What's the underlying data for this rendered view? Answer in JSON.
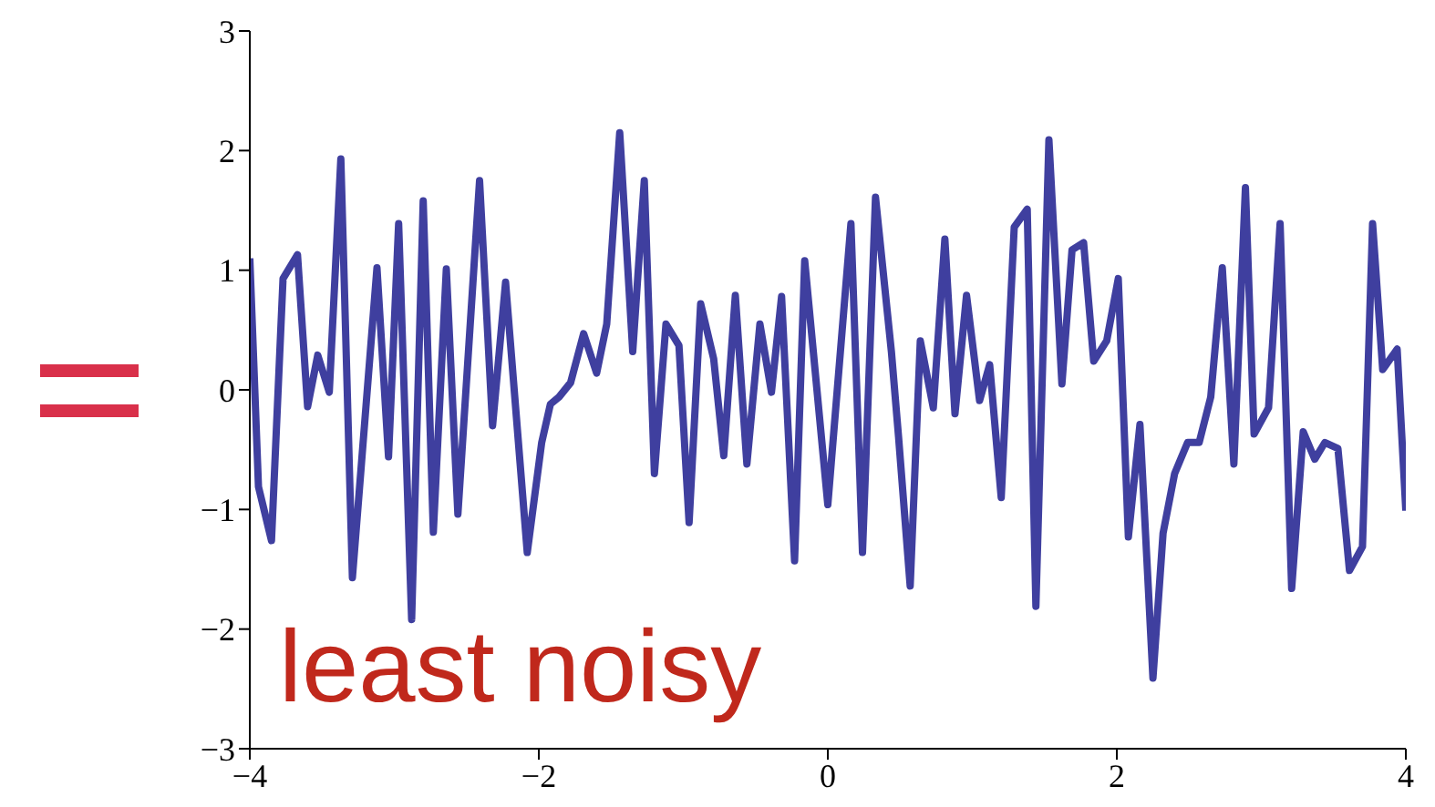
{
  "chart_data": {
    "type": "line",
    "annotations": [
      "least noisy"
    ],
    "x": [
      -4.0,
      -3.94,
      -3.85,
      -3.77,
      -3.67,
      -3.6,
      -3.53,
      -3.45,
      -3.37,
      -3.29,
      -3.12,
      -3.04,
      -2.97,
      -2.88,
      -2.8,
      -2.73,
      -2.64,
      -2.56,
      -2.41,
      -2.32,
      -2.23,
      -2.08,
      -1.98,
      -1.92,
      -1.86,
      -1.78,
      -1.69,
      -1.6,
      -1.53,
      -1.44,
      -1.35,
      -1.27,
      -1.2,
      -1.12,
      -1.03,
      -0.96,
      -0.88,
      -0.79,
      -0.72,
      -0.64,
      -0.56,
      -0.47,
      -0.39,
      -0.32,
      -0.23,
      -0.16,
      0.0,
      0.16,
      0.24,
      0.33,
      0.44,
      0.49,
      0.57,
      0.64,
      0.73,
      0.81,
      0.88,
      0.96,
      1.05,
      1.12,
      1.2,
      1.29,
      1.38,
      1.44,
      1.53,
      1.62,
      1.69,
      1.77,
      1.84,
      1.93,
      2.01,
      2.08,
      2.16,
      2.25,
      2.32,
      2.4,
      2.49,
      2.57,
      2.65,
      2.73,
      2.81,
      2.89,
      2.95,
      3.05,
      3.13,
      3.21,
      3.29,
      3.37,
      3.44,
      3.53,
      3.61,
      3.7,
      3.77,
      3.84,
      3.94,
      4.0
    ],
    "series": [
      {
        "color": "#3f3f9f",
        "values": [
          1.1,
          -0.81,
          -1.26,
          0.93,
          1.13,
          -0.14,
          0.29,
          -0.02,
          1.93,
          -1.57,
          1.02,
          -0.56,
          1.39,
          -1.92,
          1.58,
          -1.19,
          1.01,
          -1.04,
          1.75,
          -0.3,
          0.9,
          -1.36,
          -0.44,
          -0.12,
          -0.06,
          0.06,
          0.47,
          0.14,
          0.55,
          2.15,
          0.32,
          1.75,
          -0.7,
          0.55,
          0.37,
          -1.11,
          0.72,
          0.26,
          -0.55,
          0.79,
          -0.62,
          0.55,
          -0.02,
          0.78,
          -1.43,
          1.08,
          -0.96,
          1.39,
          -1.36,
          1.61,
          0.32,
          -0.4,
          -1.64,
          0.41,
          -0.15,
          1.26,
          -0.2,
          0.79,
          -0.09,
          0.21,
          -0.9,
          1.36,
          1.51,
          -1.81,
          2.09,
          0.05,
          1.17,
          1.23,
          0.24,
          0.41,
          0.93,
          -1.23,
          -0.29,
          -2.41,
          -1.2,
          -0.7,
          -0.44,
          -0.44,
          -0.06,
          1.02,
          -0.62,
          1.69,
          -0.37,
          -0.15,
          1.39,
          -1.66,
          -0.35,
          -0.58,
          -0.44,
          -0.49,
          -1.51,
          -1.31,
          1.39,
          0.17,
          0.34,
          -1.01
        ]
      }
    ],
    "xlim": [
      -4,
      4
    ],
    "xticks": [
      -4,
      -2,
      0,
      2,
      4
    ],
    "ylim": [
      -3,
      3
    ],
    "yticks": [
      -3,
      -2,
      -1,
      0,
      1,
      2,
      3
    ],
    "grid": false,
    "legend": false,
    "marker": "none",
    "line_style": "solid"
  }
}
